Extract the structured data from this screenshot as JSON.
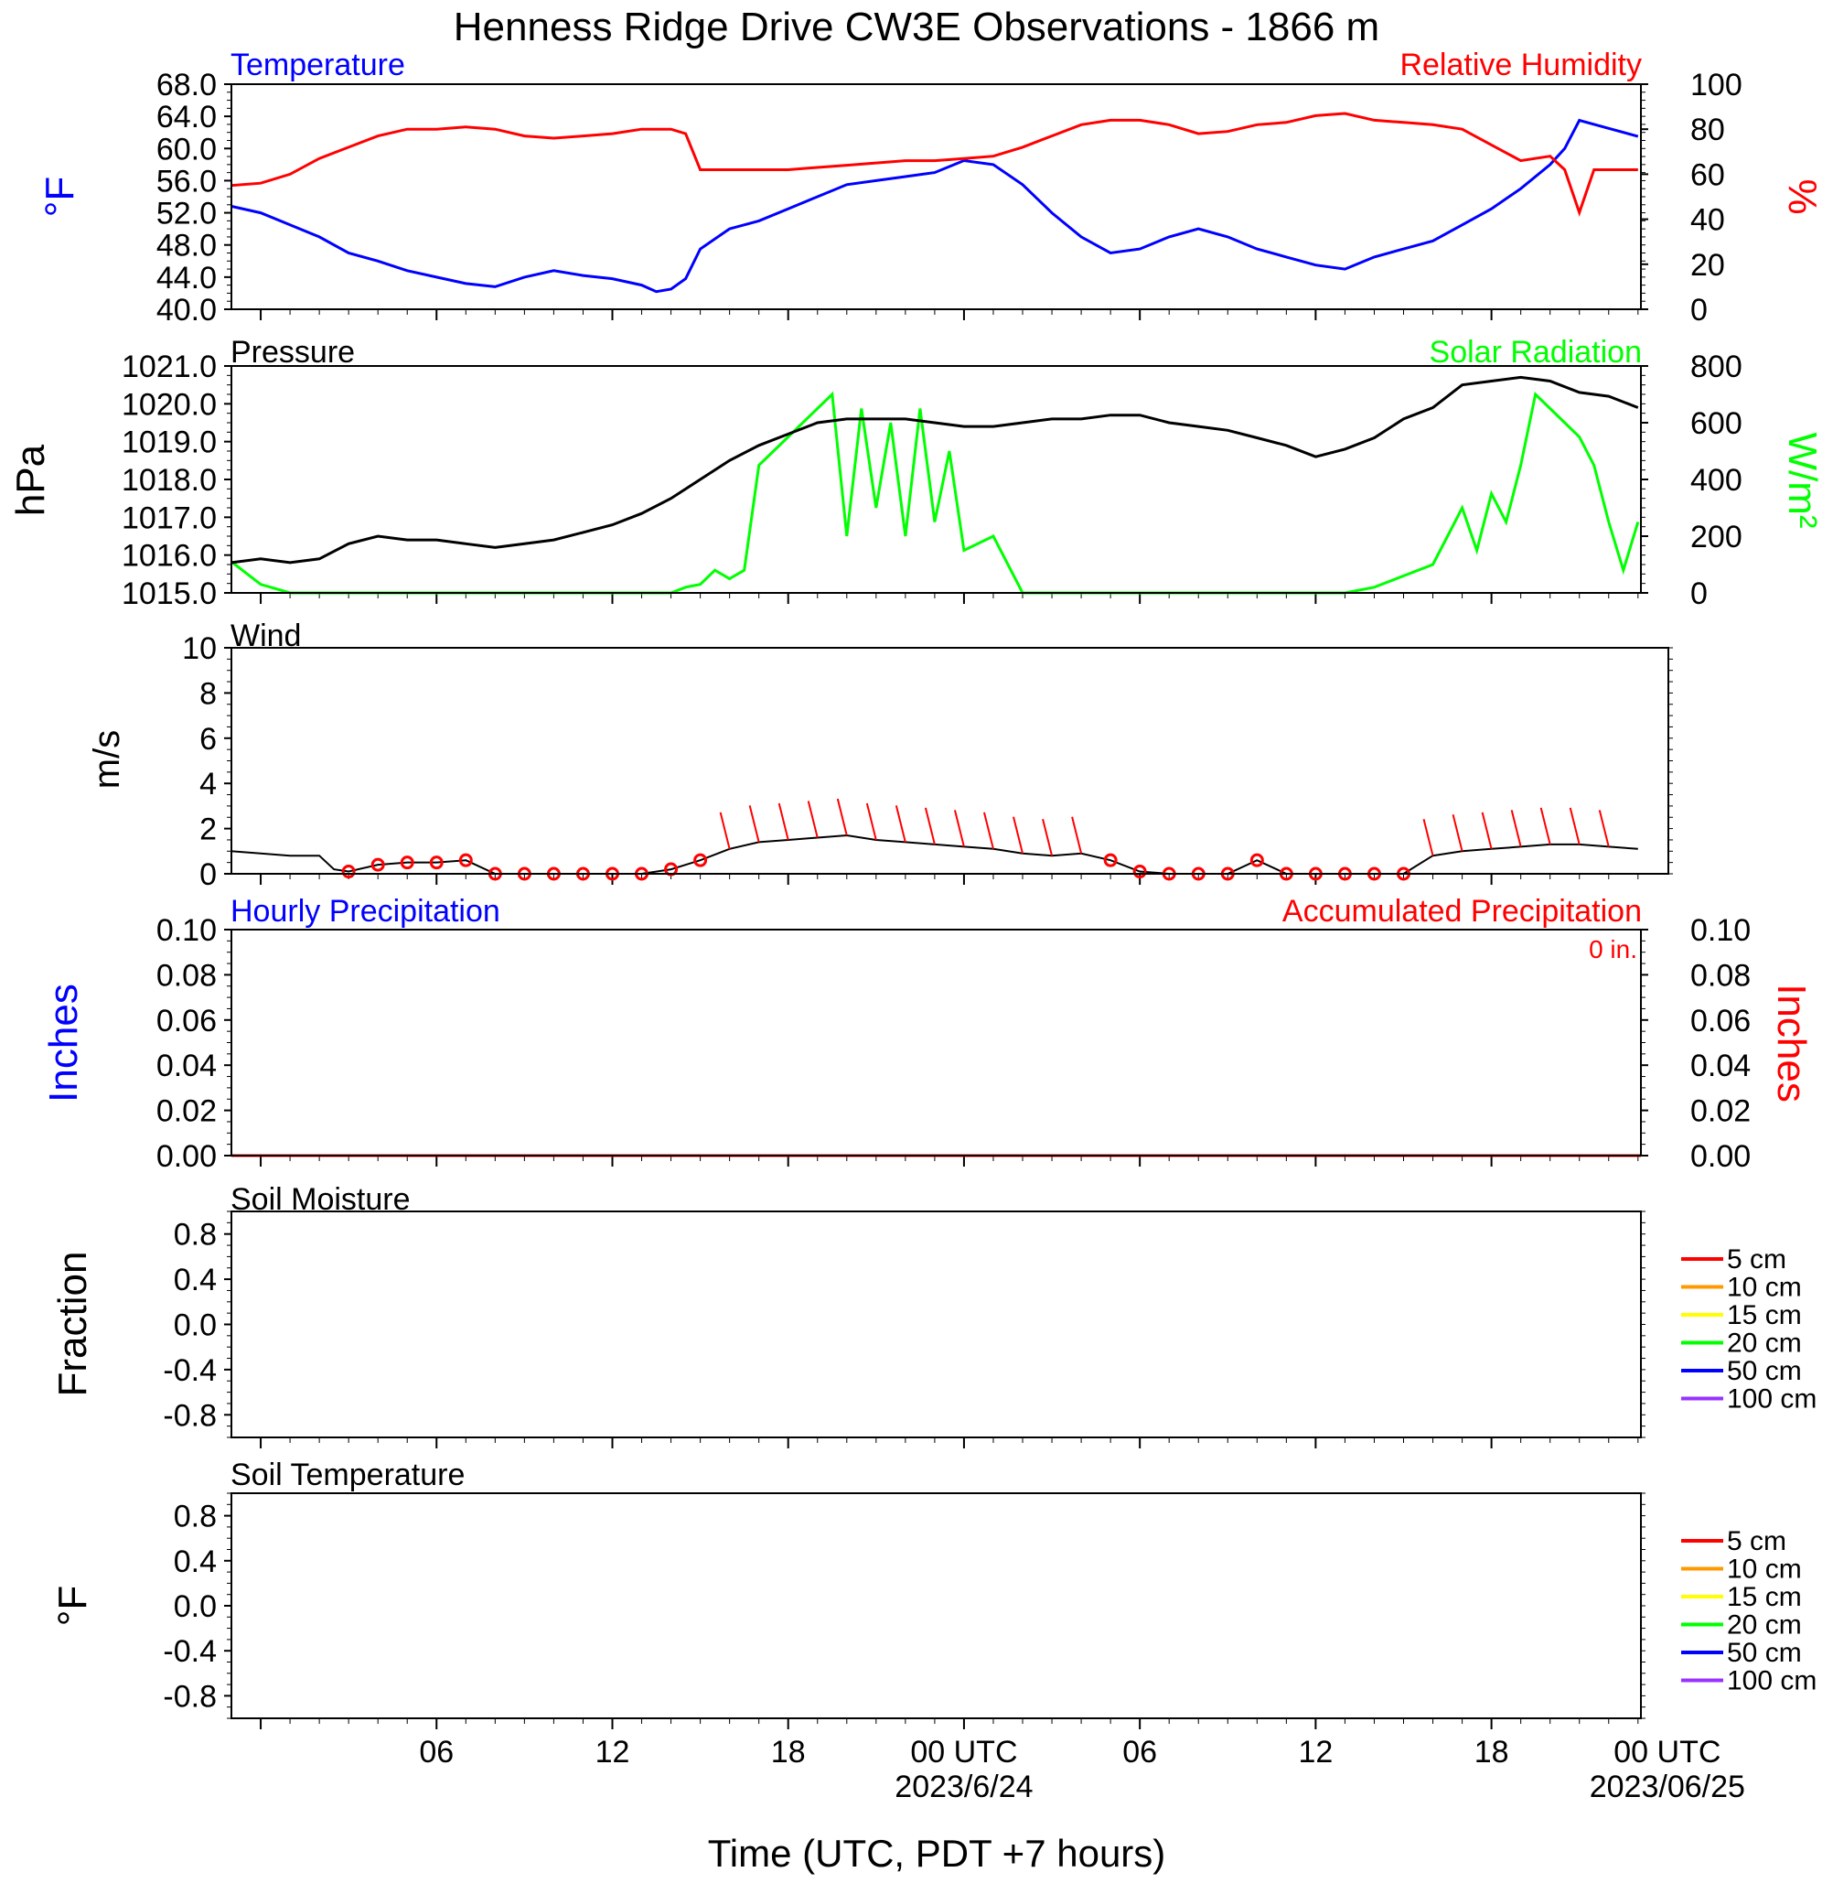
{
  "title": "Henness Ridge Drive CW3E Observations - 1866 m",
  "xaxis": {
    "label": "Time (UTC, PDT +7 hours)",
    "range_hours": [
      -1,
      47.1
    ],
    "ticks": [
      {
        "hour": 6,
        "label": "06",
        "date": ""
      },
      {
        "hour": 12,
        "label": "12",
        "date": ""
      },
      {
        "hour": 18,
        "label": "18",
        "date": ""
      },
      {
        "hour": 24,
        "label": "00 UTC",
        "date": "2023/6/24"
      },
      {
        "hour": 30,
        "label": "06",
        "date": ""
      },
      {
        "hour": 36,
        "label": "12",
        "date": ""
      },
      {
        "hour": 42,
        "label": "18",
        "date": ""
      },
      {
        "hour": 48,
        "label": "00 UTC",
        "date": "2023/06/25"
      }
    ]
  },
  "colors": {
    "temperature": "#0000ff",
    "humidity": "#ff0000",
    "pressure": "#000000",
    "solar": "#00ff00",
    "wind": "#000000",
    "wind_barb": "#ff0000",
    "hourly_precip": "#0000ff",
    "accum_precip": "#ff0000"
  },
  "panels": {
    "temp_rh": {
      "left_title": "Temperature",
      "right_title": "Relative Humidity",
      "left_unit": "°F",
      "right_unit": "%",
      "left_ticks": [
        "40.0",
        "44.0",
        "48.0",
        "52.0",
        "56.0",
        "60.0",
        "64.0",
        "68.0"
      ],
      "right_ticks": [
        "0",
        "20",
        "40",
        "60",
        "80",
        "100"
      ]
    },
    "pressure_solar": {
      "left_title": "Pressure",
      "right_title": "Solar Radiation",
      "left_unit": "hPa",
      "right_unit": "W/m²",
      "left_ticks": [
        "1015.0",
        "1016.0",
        "1017.0",
        "1018.0",
        "1019.0",
        "1020.0",
        "1021.0"
      ],
      "right_ticks": [
        "0",
        "200",
        "400",
        "600",
        "800"
      ]
    },
    "wind": {
      "left_title": "Wind",
      "left_unit": "m/s",
      "left_ticks": [
        "0",
        "2",
        "4",
        "6",
        "8",
        "10"
      ]
    },
    "precip": {
      "left_title": "Hourly Precipitation",
      "right_title": "Accumulated Precipitation",
      "accum_label": "0 in.",
      "left_unit": "Inches",
      "right_unit": "Inches",
      "left_ticks": [
        "0.00",
        "0.02",
        "0.04",
        "0.06",
        "0.08",
        "0.10"
      ],
      "right_ticks": [
        "0.00",
        "0.02",
        "0.04",
        "0.06",
        "0.08",
        "0.10"
      ]
    },
    "soil_moisture": {
      "left_title": "Soil Moisture",
      "left_unit": "Fraction",
      "left_ticks": [
        "-0.8",
        "-0.4",
        "0.0",
        "0.4",
        "0.8"
      ],
      "legend": [
        {
          "label": "5 cm",
          "color": "#ff0000"
        },
        {
          "label": "10 cm",
          "color": "#ff9900"
        },
        {
          "label": "15 cm",
          "color": "#ffff00"
        },
        {
          "label": "20 cm",
          "color": "#00ff00"
        },
        {
          "label": "50 cm",
          "color": "#0000ff"
        },
        {
          "label": "100 cm",
          "color": "#9933ff"
        }
      ]
    },
    "soil_temp": {
      "left_title": "Soil Temperature",
      "left_unit": "°F",
      "left_ticks": [
        "-0.8",
        "-0.4",
        "0.0",
        "0.4",
        "0.8"
      ],
      "legend": [
        {
          "label": "5 cm",
          "color": "#ff0000"
        },
        {
          "label": "10 cm",
          "color": "#ff9900"
        },
        {
          "label": "15 cm",
          "color": "#ffff00"
        },
        {
          "label": "20 cm",
          "color": "#00ff00"
        },
        {
          "label": "50 cm",
          "color": "#0000ff"
        },
        {
          "label": "100 cm",
          "color": "#9933ff"
        }
      ]
    }
  },
  "chart_data": [
    {
      "type": "line",
      "series": [
        {
          "name": "Temperature",
          "unit": "°F",
          "ylim": [
            40,
            68
          ],
          "x": [
            -1,
            0,
            1,
            2,
            3,
            4,
            5,
            6,
            7,
            8,
            9,
            10,
            11,
            12,
            13,
            13.5,
            14,
            14.5,
            15,
            16,
            17,
            18,
            19,
            20,
            21,
            22,
            23,
            24,
            25,
            26,
            27,
            28,
            29,
            30,
            31,
            32,
            33,
            34,
            35,
            36,
            37,
            38,
            39,
            40,
            41,
            42,
            43,
            44,
            44.5,
            45,
            46,
            47
          ],
          "y": [
            52.8,
            52,
            50.5,
            49,
            47,
            46,
            44.8,
            44,
            43.2,
            42.8,
            44,
            44.8,
            44.2,
            43.8,
            43,
            42.2,
            42.5,
            43.8,
            47.5,
            50,
            51,
            52.5,
            54,
            55.5,
            56,
            56.5,
            57,
            58.5,
            58,
            55.5,
            52,
            49,
            47,
            47.5,
            49,
            50,
            49,
            47.5,
            46.5,
            45.5,
            45,
            46.5,
            47.5,
            48.5,
            50.5,
            52.5,
            55,
            58,
            60,
            63.5,
            62.5,
            61.5
          ]
        },
        {
          "name": "Relative Humidity",
          "unit": "%",
          "ylim": [
            0,
            100
          ],
          "x": [
            -1,
            0,
            1,
            2,
            3,
            4,
            5,
            6,
            7,
            8,
            9,
            10,
            11,
            12,
            13,
            14,
            14.5,
            15,
            16,
            17,
            18,
            19,
            20,
            21,
            22,
            23,
            24,
            25,
            26,
            27,
            28,
            29,
            30,
            31,
            32,
            33,
            34,
            35,
            36,
            37,
            38,
            39,
            40,
            41,
            42,
            43,
            44,
            44.5,
            45,
            45.5,
            46,
            47
          ],
          "y": [
            55,
            56,
            60,
            67,
            72,
            77,
            80,
            80,
            81,
            80,
            77,
            76,
            77,
            78,
            80,
            80,
            78,
            62,
            62,
            62,
            62,
            63,
            64,
            65,
            66,
            66,
            67,
            68,
            72,
            77,
            82,
            84,
            84,
            82,
            78,
            79,
            82,
            83,
            86,
            87,
            84,
            83,
            82,
            80,
            73,
            66,
            68,
            62,
            43,
            62,
            62,
            62
          ]
        }
      ]
    },
    {
      "type": "line",
      "series": [
        {
          "name": "Pressure",
          "unit": "hPa",
          "ylim": [
            1015,
            1021
          ],
          "x": [
            -1,
            0,
            1,
            2,
            3,
            4,
            5,
            6,
            7,
            8,
            9,
            10,
            11,
            12,
            13,
            14,
            15,
            16,
            17,
            18,
            19,
            20,
            21,
            22,
            23,
            24,
            25,
            26,
            27,
            28,
            29,
            30,
            31,
            32,
            33,
            34,
            35,
            36,
            37,
            38,
            39,
            40,
            41,
            42,
            43,
            44,
            45,
            46,
            47
          ],
          "y": [
            1015.8,
            1015.9,
            1015.8,
            1015.9,
            1016.3,
            1016.5,
            1016.4,
            1016.4,
            1016.3,
            1016.2,
            1016.3,
            1016.4,
            1016.6,
            1016.8,
            1017.1,
            1017.5,
            1018.0,
            1018.5,
            1018.9,
            1019.2,
            1019.5,
            1019.6,
            1019.6,
            1019.6,
            1019.5,
            1019.4,
            1019.4,
            1019.5,
            1019.6,
            1019.6,
            1019.7,
            1019.7,
            1019.5,
            1019.4,
            1019.3,
            1019.1,
            1018.9,
            1018.6,
            1018.8,
            1019.1,
            1019.6,
            1019.9,
            1020.5,
            1020.6,
            1020.7,
            1020.6,
            1020.3,
            1020.2,
            1019.9
          ]
        },
        {
          "name": "Solar Radiation",
          "unit": "W/m²",
          "ylim": [
            0,
            800
          ],
          "x": [
            -1,
            0,
            1,
            2,
            3,
            4,
            5,
            6,
            7,
            8,
            9,
            10,
            11,
            12,
            13,
            14,
            14.5,
            15,
            15.5,
            16,
            16.5,
            17,
            17.5,
            18,
            19,
            19.5,
            20,
            20.5,
            21,
            21.5,
            22,
            22.5,
            23,
            23.5,
            24,
            25,
            26,
            27,
            28,
            29,
            30,
            31,
            32,
            33,
            34,
            35,
            36,
            37,
            38,
            39,
            40,
            40.5,
            41,
            41.5,
            42,
            42.5,
            43,
            43.5,
            44,
            44.5,
            45,
            45.5,
            46,
            46.5,
            47
          ],
          "y": [
            110,
            30,
            0,
            0,
            0,
            0,
            0,
            0,
            0,
            0,
            0,
            0,
            0,
            0,
            0,
            0,
            20,
            30,
            80,
            50,
            80,
            450,
            500,
            550,
            650,
            700,
            200,
            650,
            300,
            600,
            200,
            650,
            250,
            500,
            150,
            200,
            0,
            0,
            0,
            0,
            0,
            0,
            0,
            0,
            0,
            0,
            0,
            0,
            20,
            60,
            100,
            200,
            300,
            150,
            350,
            250,
            450,
            700,
            650,
            600,
            550,
            450,
            250,
            80,
            250
          ]
        }
      ]
    },
    {
      "type": "line",
      "series": [
        {
          "name": "Wind",
          "unit": "m/s",
          "ylim": [
            0,
            10
          ],
          "x": [
            -1,
            0,
            1,
            2,
            2.5,
            3,
            4,
            5,
            6,
            7,
            8,
            9,
            10,
            11,
            12,
            13,
            14,
            15,
            16,
            17,
            18,
            19,
            20,
            21,
            22,
            23,
            24,
            25,
            26,
            27,
            28,
            29,
            30,
            31,
            32,
            33,
            34,
            35,
            36,
            37,
            38,
            39,
            40,
            41,
            42,
            43,
            44,
            45,
            46,
            47
          ],
          "y": [
            1.0,
            0.9,
            0.8,
            0.8,
            0.2,
            0.1,
            0.4,
            0.5,
            0.5,
            0.6,
            0.0,
            0.0,
            0.0,
            0.0,
            0.0,
            0.0,
            0.2,
            0.6,
            1.1,
            1.4,
            1.5,
            1.6,
            1.7,
            1.5,
            1.4,
            1.3,
            1.2,
            1.1,
            0.9,
            0.8,
            0.9,
            0.6,
            0.1,
            0.0,
            0.0,
            0.0,
            0.6,
            0.0,
            0.0,
            0.0,
            0.0,
            0.0,
            0.8,
            1.0,
            1.1,
            1.2,
            1.3,
            1.3,
            1.2,
            1.1
          ]
        }
      ]
    },
    {
      "type": "line",
      "series": [
        {
          "name": "Hourly Precipitation",
          "unit": "Inches",
          "ylim": [
            0,
            0.1
          ],
          "x": [
            -1,
            47.1
          ],
          "y": [
            0,
            0
          ]
        },
        {
          "name": "Accumulated Precipitation",
          "unit": "Inches",
          "ylim": [
            0,
            0.1
          ],
          "x": [
            -1,
            47.1
          ],
          "y": [
            0,
            0
          ]
        }
      ]
    }
  ]
}
